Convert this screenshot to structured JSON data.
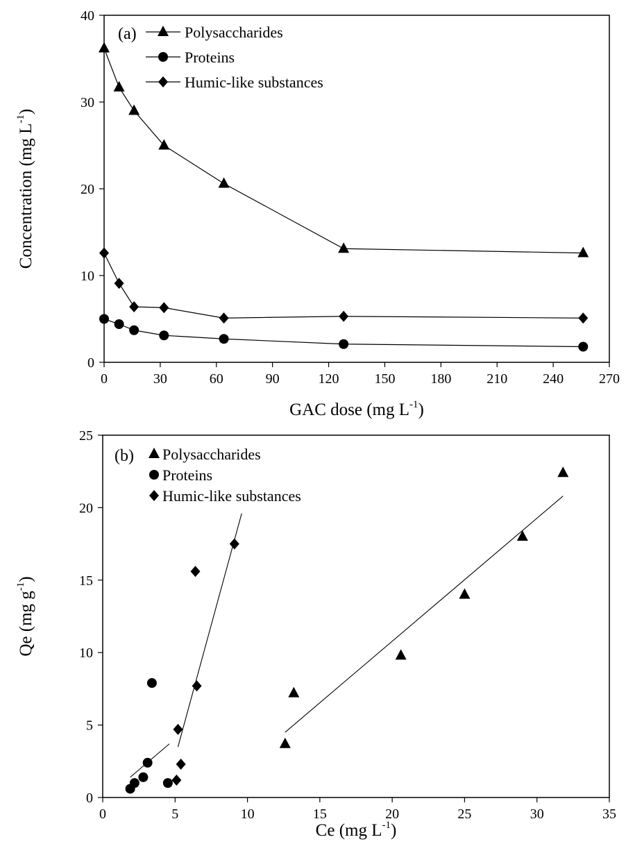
{
  "chart_data": [
    {
      "type": "line",
      "panel_label": "(a)",
      "xlabel": "GAC dose (mg L-1)",
      "xlabel_parts": {
        "base": "GAC dose (mg L",
        "sup": "-1",
        "close": ")"
      },
      "ylabel": "Concentration (mg L-1)",
      "ylabel_parts": {
        "base": "Concentration (mg L",
        "sup": "-1",
        "close": ")"
      },
      "xlim": [
        0,
        270
      ],
      "ylim": [
        0,
        40
      ],
      "xticks": [
        "0",
        "30",
        "60",
        "90",
        "120",
        "150",
        "180",
        "210",
        "240",
        "270"
      ],
      "yticks": [
        "0",
        "10",
        "20",
        "30",
        "40"
      ],
      "legend_position": "top-left",
      "grid": false,
      "series": [
        {
          "name": "Polysaccharides",
          "marker": "triangle",
          "x": [
            0,
            8,
            16,
            32,
            64,
            128,
            256
          ],
          "y": [
            36.2,
            31.7,
            29.0,
            25.0,
            20.6,
            13.1,
            12.6
          ]
        },
        {
          "name": "Proteins",
          "marker": "circle",
          "x": [
            0,
            8,
            16,
            32,
            64,
            128,
            256
          ],
          "y": [
            5.0,
            4.4,
            3.7,
            3.1,
            2.7,
            2.1,
            1.8
          ]
        },
        {
          "name": "Humic-like substances",
          "marker": "diamond",
          "x": [
            0,
            8,
            16,
            32,
            64,
            128,
            256
          ],
          "y": [
            12.6,
            9.1,
            6.4,
            6.3,
            5.1,
            5.3,
            5.1
          ]
        }
      ]
    },
    {
      "type": "scatter",
      "panel_label": "(b)",
      "xlabel": "Ce (mg L-1)",
      "xlabel_parts": {
        "base": "Ce (mg L",
        "sup": "-1",
        "close": ")"
      },
      "ylabel": "Qe (mg g-1)",
      "ylabel_parts": {
        "base": "Qe (mg g",
        "sup": "-1",
        "close": ")"
      },
      "xlim": [
        0,
        35
      ],
      "ylim": [
        0,
        25
      ],
      "xticks": [
        "0",
        "5",
        "10",
        "15",
        "20",
        "25",
        "30",
        "35"
      ],
      "yticks": [
        "0",
        "5",
        "10",
        "15",
        "20",
        "25"
      ],
      "legend_position": "top-left",
      "grid": false,
      "series": [
        {
          "name": "Polysaccharides",
          "marker": "triangle",
          "x": [
            12.6,
            13.2,
            20.6,
            25.0,
            29.0,
            31.8
          ],
          "y": [
            3.7,
            7.2,
            9.8,
            14.0,
            18.0,
            22.4
          ],
          "fit": {
            "x": [
              12.6,
              31.8
            ],
            "y": [
              4.5,
              20.8
            ]
          }
        },
        {
          "name": "Proteins",
          "marker": "circle",
          "x": [
            1.9,
            2.2,
            2.8,
            3.1,
            3.4,
            4.5
          ],
          "y": [
            0.6,
            1.0,
            1.4,
            2.4,
            7.9,
            1.0
          ],
          "fit": {
            "x": [
              1.9,
              4.6
            ],
            "y": [
              1.4,
              3.7
            ]
          }
        },
        {
          "name": "Humic-like substances",
          "marker": "diamond",
          "x": [
            5.1,
            5.2,
            5.4,
            6.4,
            6.5,
            9.1
          ],
          "y": [
            1.2,
            4.7,
            2.3,
            15.6,
            7.7,
            17.5
          ],
          "fit": {
            "x": [
              5.2,
              9.6
            ],
            "y": [
              3.5,
              19.6
            ]
          }
        }
      ]
    }
  ]
}
